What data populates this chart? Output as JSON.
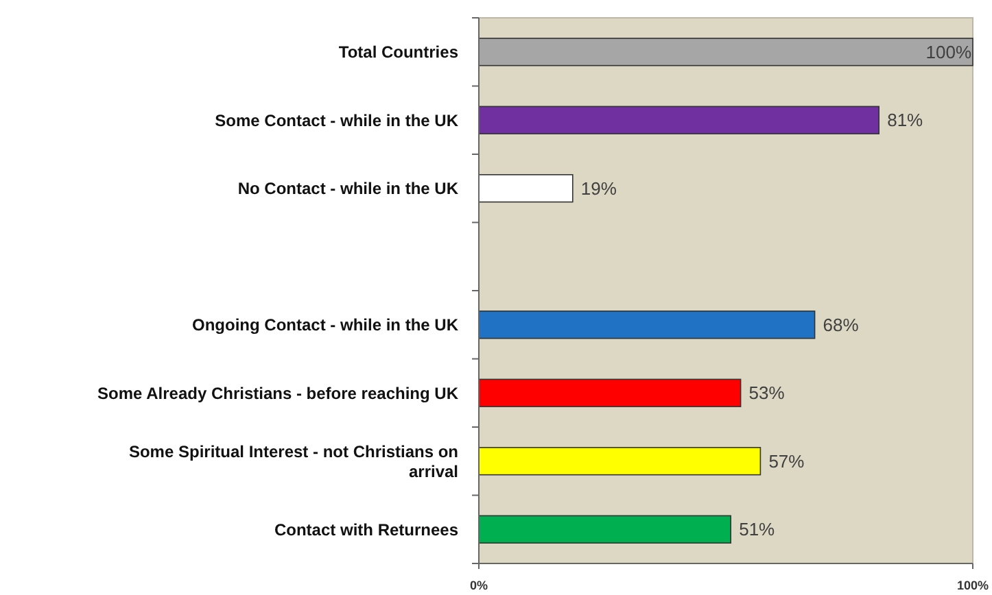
{
  "chart_data": {
    "type": "bar",
    "orientation": "horizontal",
    "categories": [
      "Total Countries",
      "Some Contact - while in the UK",
      "No Contact - while in the UK",
      null,
      "Ongoing Contact - while in the UK",
      "Some Already  Christians - before reaching UK",
      "Some Spiritual Interest - not Christians on arrival",
      "Contact with Returnees"
    ],
    "values": [
      100,
      81,
      19,
      null,
      68,
      53,
      57,
      51
    ],
    "colors": [
      "#a6a6a6",
      "#7030a0",
      "#ffffff",
      null,
      "#1f72c4",
      "#ff0000",
      "#ffff00",
      "#00b050"
    ],
    "value_labels": [
      "100%",
      "81%",
      "19%",
      null,
      "68%",
      "53%",
      "57%",
      "51%"
    ],
    "xlim": [
      0,
      100
    ],
    "xticks": [
      {
        "value": 0,
        "label": "0%"
      },
      {
        "value": 100,
        "label": "100%"
      }
    ],
    "grid": false
  }
}
